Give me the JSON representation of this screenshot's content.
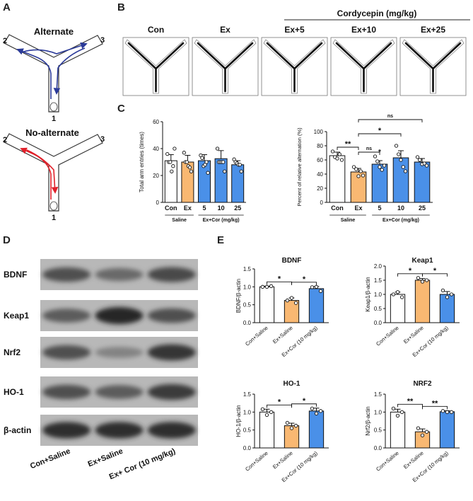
{
  "panels": {
    "A": {
      "letter": "A",
      "top_title": "Alternate",
      "bottom_title": "No-alternate",
      "arm_labels": [
        "1",
        "2",
        "3"
      ],
      "colors": {
        "alternate": "#2b3a99",
        "no_alternate": "#e0202a"
      }
    },
    "B": {
      "letter": "B",
      "group_header": "Cordycepin (mg/kg)",
      "conditions": [
        "Con",
        "Ex",
        "Ex+5",
        "Ex+10",
        "Ex+25"
      ]
    },
    "C": {
      "letter": "C"
    },
    "D": {
      "letter": "D",
      "proteins": [
        "BDNF",
        "Keap1",
        "Nrf2",
        "HO-1",
        "β-actin"
      ],
      "lanes": [
        "Con+Saline",
        "Ex+Saline",
        "Ex+ Cor (10 mg/kg)"
      ]
    },
    "E": {
      "letter": "E"
    }
  },
  "colors": {
    "con": "#ffffff",
    "ex": "#f9b872",
    "cor": "#4a90e8"
  },
  "chart_data": [
    {
      "id": "c1",
      "type": "bar",
      "ylabel": "Total arm entries (times)",
      "categories": [
        "Con",
        "Ex",
        "5",
        "10",
        "25"
      ],
      "values": [
        31,
        30,
        31,
        32.5,
        28
      ],
      "errors": [
        4.5,
        5,
        4.5,
        6,
        3
      ],
      "points": [
        [
          36,
          30,
          30,
          23,
          27,
          40
        ],
        [
          37,
          30,
          30,
          27,
          26,
          23
        ],
        [
          35,
          33,
          27,
          28,
          30,
          22
        ],
        [
          40,
          30,
          30,
          30,
          30,
          23
        ],
        [
          32,
          30,
          29,
          28,
          28,
          23
        ]
      ],
      "ylim": [
        0,
        60
      ],
      "yticks": [
        0,
        20,
        40,
        60
      ],
      "group_labels": [
        "Saline",
        "Ex+Cor (mg/kg)"
      ],
      "bar_colors": [
        "#ffffff",
        "#f9b872",
        "#4a90e8",
        "#4a90e8",
        "#4a90e8"
      ]
    },
    {
      "id": "c2",
      "type": "bar",
      "ylabel": "Percent of relative alternation (%)",
      "categories": [
        "Con",
        "Ex",
        "5",
        "10",
        "25"
      ],
      "values": [
        66,
        43,
        54,
        63,
        57
      ],
      "errors": [
        5,
        5,
        5,
        10,
        5
      ],
      "points": [
        [
          72,
          64,
          62,
          68,
          60
        ],
        [
          50,
          47,
          37,
          44,
          38
        ],
        [
          65,
          58,
          50,
          46,
          52
        ],
        [
          80,
          68,
          60,
          50,
          44
        ],
        [
          64,
          60,
          54,
          55,
          52
        ]
      ],
      "ylim": [
        0,
        100
      ],
      "yticks": [
        0,
        20,
        40,
        60,
        80,
        100
      ],
      "group_labels": [
        "Saline",
        "Ex+Cor (mg/kg)"
      ],
      "bar_colors": [
        "#ffffff",
        "#f9b872",
        "#4a90e8",
        "#4a90e8",
        "#4a90e8"
      ],
      "significance": [
        {
          "from": 1,
          "to": 4,
          "text": "ns",
          "level": 3
        },
        {
          "from": 1,
          "to": 3,
          "text": "*",
          "level": 2
        },
        {
          "from": 1,
          "to": 2,
          "text": "ns",
          "level": 1
        },
        {
          "from": 0,
          "to": 1,
          "text": "**",
          "level": 1
        }
      ],
      "point_marks": [
        {
          "bar": 2,
          "text": "*"
        }
      ]
    },
    {
      "id": "e1",
      "type": "bar",
      "title": "BDNF",
      "ylabel": "BDNF/β-actin",
      "categories": [
        "Con+Saline",
        "Ex+Saline",
        "Ex+Cor (10 mg/kg)"
      ],
      "values": [
        1.0,
        0.62,
        0.95
      ],
      "errors": [
        0.02,
        0.07,
        0.06
      ],
      "points": [
        [
          1.0,
          1.0,
          1.02
        ],
        [
          0.62,
          0.69,
          0.55
        ],
        [
          0.99,
          1.0,
          0.88
        ]
      ],
      "ylim": [
        0,
        1.5
      ],
      "yticks": [
        0.0,
        0.5,
        1.0,
        1.5
      ],
      "bar_colors": [
        "#ffffff",
        "#f9b872",
        "#4a90e8"
      ],
      "significance": [
        {
          "from": 0,
          "to": 1,
          "text": "*",
          "level": 1
        },
        {
          "from": 1,
          "to": 2,
          "text": "*",
          "level": 1
        }
      ]
    },
    {
      "id": "e2",
      "type": "bar",
      "title": "Keap1",
      "ylabel": "Keap1/β-actin",
      "categories": [
        "Con+Saline",
        "Ex+Saline",
        "Ex+Cor (10 mg/kg)"
      ],
      "values": [
        1.0,
        1.5,
        1.0
      ],
      "errors": [
        0.08,
        0.06,
        0.1
      ],
      "points": [
        [
          1.0,
          1.08,
          0.9
        ],
        [
          1.58,
          1.45,
          1.5
        ],
        [
          1.14,
          0.9,
          1.0
        ]
      ],
      "ylim": [
        0,
        2.0
      ],
      "yticks": [
        0.0,
        0.5,
        1.0,
        1.5,
        2.0
      ],
      "bar_colors": [
        "#ffffff",
        "#f9b872",
        "#4a90e8"
      ],
      "significance": [
        {
          "from": 0,
          "to": 1,
          "text": "*",
          "level": 1
        },
        {
          "from": 1,
          "to": 2,
          "text": "*",
          "level": 1
        }
      ]
    },
    {
      "id": "e3",
      "type": "bar",
      "title": "HO-1",
      "ylabel": "HO-1/β-actin",
      "categories": [
        "Con+Saline",
        "Ex+Saline",
        "Ex+Cor (10 mg/kg)"
      ],
      "values": [
        1.0,
        0.62,
        1.03
      ],
      "errors": [
        0.08,
        0.07,
        0.08
      ],
      "points": [
        [
          1.08,
          0.92,
          1.0
        ],
        [
          0.7,
          0.55,
          0.62
        ],
        [
          1.1,
          0.96,
          1.03
        ]
      ],
      "ylim": [
        0,
        1.5
      ],
      "yticks": [
        0.0,
        0.5,
        1.0,
        1.5
      ],
      "bar_colors": [
        "#ffffff",
        "#f9b872",
        "#4a90e8"
      ],
      "significance": [
        {
          "from": 0,
          "to": 1,
          "text": "*",
          "level": 1
        },
        {
          "from": 1,
          "to": 2,
          "text": "*",
          "level": 1
        }
      ]
    },
    {
      "id": "e4",
      "type": "bar",
      "title": "NRF2",
      "ylabel": "Nrf2/β-actin",
      "categories": [
        "Con+Saline",
        "Ex+Saline",
        "Ex+Cor (10 mg/kg)"
      ],
      "values": [
        1.0,
        0.45,
        1.01
      ],
      "errors": [
        0.08,
        0.08,
        0.03
      ],
      "points": [
        [
          1.1,
          0.9,
          1.0
        ],
        [
          0.55,
          0.35,
          0.45
        ],
        [
          1.03,
          1.0,
          1.0
        ]
      ],
      "ylim": [
        0,
        1.5
      ],
      "yticks": [
        0.0,
        0.5,
        1.0,
        1.5
      ],
      "bar_colors": [
        "#ffffff",
        "#f9b872",
        "#4a90e8"
      ],
      "significance": [
        {
          "from": 0,
          "to": 1,
          "text": "**",
          "level": 1
        },
        {
          "from": 1,
          "to": 2,
          "text": "**",
          "level": 1
        }
      ]
    }
  ]
}
